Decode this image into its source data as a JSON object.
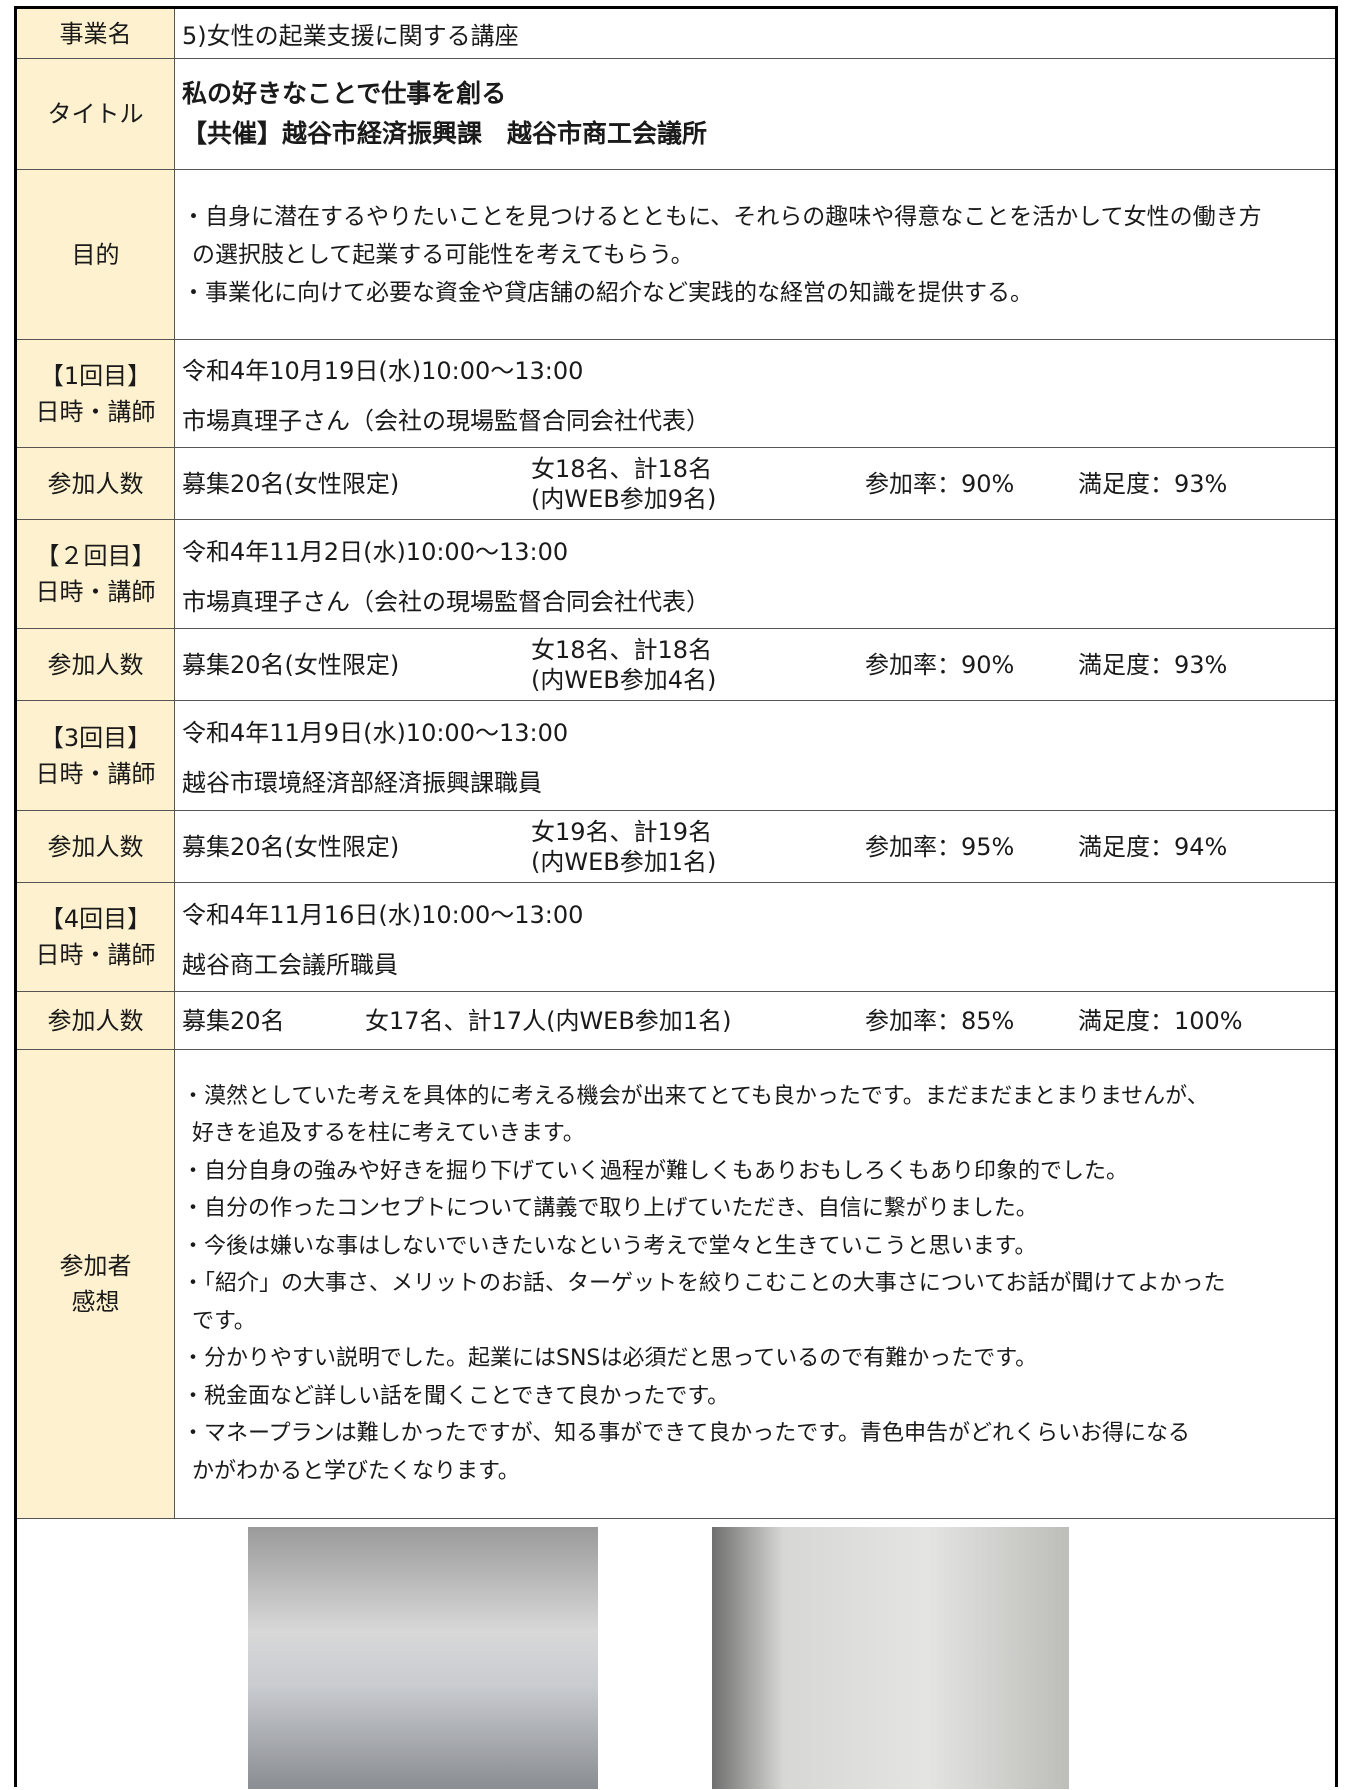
{
  "rows": [
    {
      "label": [
        "事業名"
      ],
      "lines": [
        "5)女性の起業支援に関する講座"
      ]
    },
    {
      "label": [
        "タイトル"
      ],
      "lines": [
        "私の好きなことで仕事を創る",
        "【共催】越谷市経済振興課　越谷市商工会議所"
      ]
    },
    {
      "label": [
        "目的"
      ],
      "lines": [
        "・自身に潜在するやりたいことを見つけるとともに、それらの趣味や得意なことを活かして女性の働き方",
        "の選択肢として起業する可能性を考えてもらう。",
        "・事業化に向けて必要な資金や貸店舗の紹介など実践的な経営の知識を提供する。"
      ]
    },
    {
      "label": [
        "【1回目】",
        "日時・講師"
      ],
      "lines": [
        "令和4年10月19日(水)10:00～13:00",
        "市場真理子さん（会社の現場監督合同会社代表）"
      ]
    },
    {
      "label": [
        "参加人数"
      ],
      "cells": [
        [
          "募集20名(女性限定)"
        ],
        [
          "女18名、計18名",
          "(内WEB参加9名)"
        ],
        [
          "参加率：90%"
        ],
        [
          "満足度：93%"
        ]
      ]
    },
    {
      "label": [
        "【２回目】",
        "日時・講師"
      ],
      "lines": [
        "令和4年11月2日(水)10:00～13:00",
        "市場真理子さん（会社の現場監督合同会社代表）"
      ]
    },
    {
      "label": [
        "参加人数"
      ],
      "cells": [
        [
          "募集20名(女性限定)"
        ],
        [
          "女18名、計18名",
          "(内WEB参加4名)"
        ],
        [
          "参加率：90%"
        ],
        [
          "満足度：93%"
        ]
      ]
    },
    {
      "label": [
        "【3回目】",
        "日時・講師"
      ],
      "lines": [
        "令和4年11月9日(水)10:00～13:00",
        "越谷市環境経済部経済振興課職員"
      ]
    },
    {
      "label": [
        "参加人数"
      ],
      "cells": [
        [
          "募集20名(女性限定)"
        ],
        [
          "女19名、計19名",
          "(内WEB参加1名)"
        ],
        [
          "参加率：95%"
        ],
        [
          "満足度：94%"
        ]
      ]
    },
    {
      "label": [
        "【4回目】",
        "日時・講師"
      ],
      "lines": [
        "令和4年11月16日(水)10:00～13:00",
        "越谷商工会議所職員"
      ]
    },
    {
      "label": [
        "参加人数"
      ],
      "cells": [
        [
          "募集20名"
        ],
        [
          "女17名、計17人(内WEB参加1名)"
        ],
        [
          "参加率：85%"
        ],
        [
          "満足度：100%"
        ]
      ]
    },
    {
      "label": [
        "参加者",
        "感想"
      ],
      "lines": [
        "・漠然としていた考えを具体的に考える機会が出来てとても良かったです。まだまだまとまりませんが、",
        "好きを追及するを柱に考えていきます。",
        "・自分自身の強みや好きを掘り下げていく過程が難しくもありおもしろくもあり印象的でした。",
        "・自分の作ったコンセプトについて講義で取り上げていただき、自信に繋がりました。",
        "・今後は嫌いな事はしないでいきたいなという考えで堂々と生きていこうと思います。",
        "・「紹介」の大事さ、メリットのお話、ターゲットを絞りこむことの大事さについてお話が聞けてよかった",
        "です。",
        "・分かりやすい説明でした。起業にはSNSは必須だと思っているので有難かったです。",
        "・税金面など詳しい話を聞くことできて良かったです。",
        "・マネープランは難しかったですが、知る事ができて良かったです。青色申告がどれくらいお得になる",
        "かがわかると学びたくなります。"
      ]
    }
  ]
}
